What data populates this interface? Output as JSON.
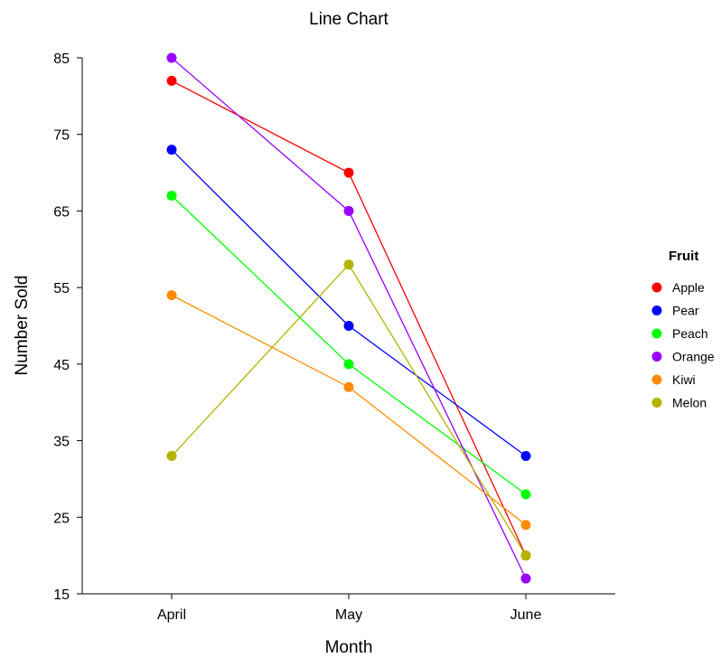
{
  "chart_data": {
    "type": "line",
    "title": "Line Chart",
    "xlabel": "Month",
    "ylabel": "Number Sold",
    "categories": [
      "April",
      "May",
      "June"
    ],
    "ylim": [
      15,
      85
    ],
    "yticks": [
      15,
      25,
      35,
      45,
      55,
      65,
      75,
      85
    ],
    "grid": false,
    "legend": {
      "title": "Fruit",
      "position": "right"
    },
    "series": [
      {
        "name": "Apple",
        "color": "#ff0000",
        "values": [
          82,
          70,
          20
        ]
      },
      {
        "name": "Pear",
        "color": "#0000ff",
        "values": [
          73,
          50,
          33
        ]
      },
      {
        "name": "Peach",
        "color": "#00ff00",
        "values": [
          67,
          45,
          28
        ]
      },
      {
        "name": "Orange",
        "color": "#9900ff",
        "values": [
          85,
          65,
          17
        ]
      },
      {
        "name": "Kiwi",
        "color": "#ff8c00",
        "values": [
          54,
          42,
          24
        ]
      },
      {
        "name": "Melon",
        "color": "#b3b300",
        "values": [
          33,
          58,
          20
        ]
      }
    ]
  }
}
